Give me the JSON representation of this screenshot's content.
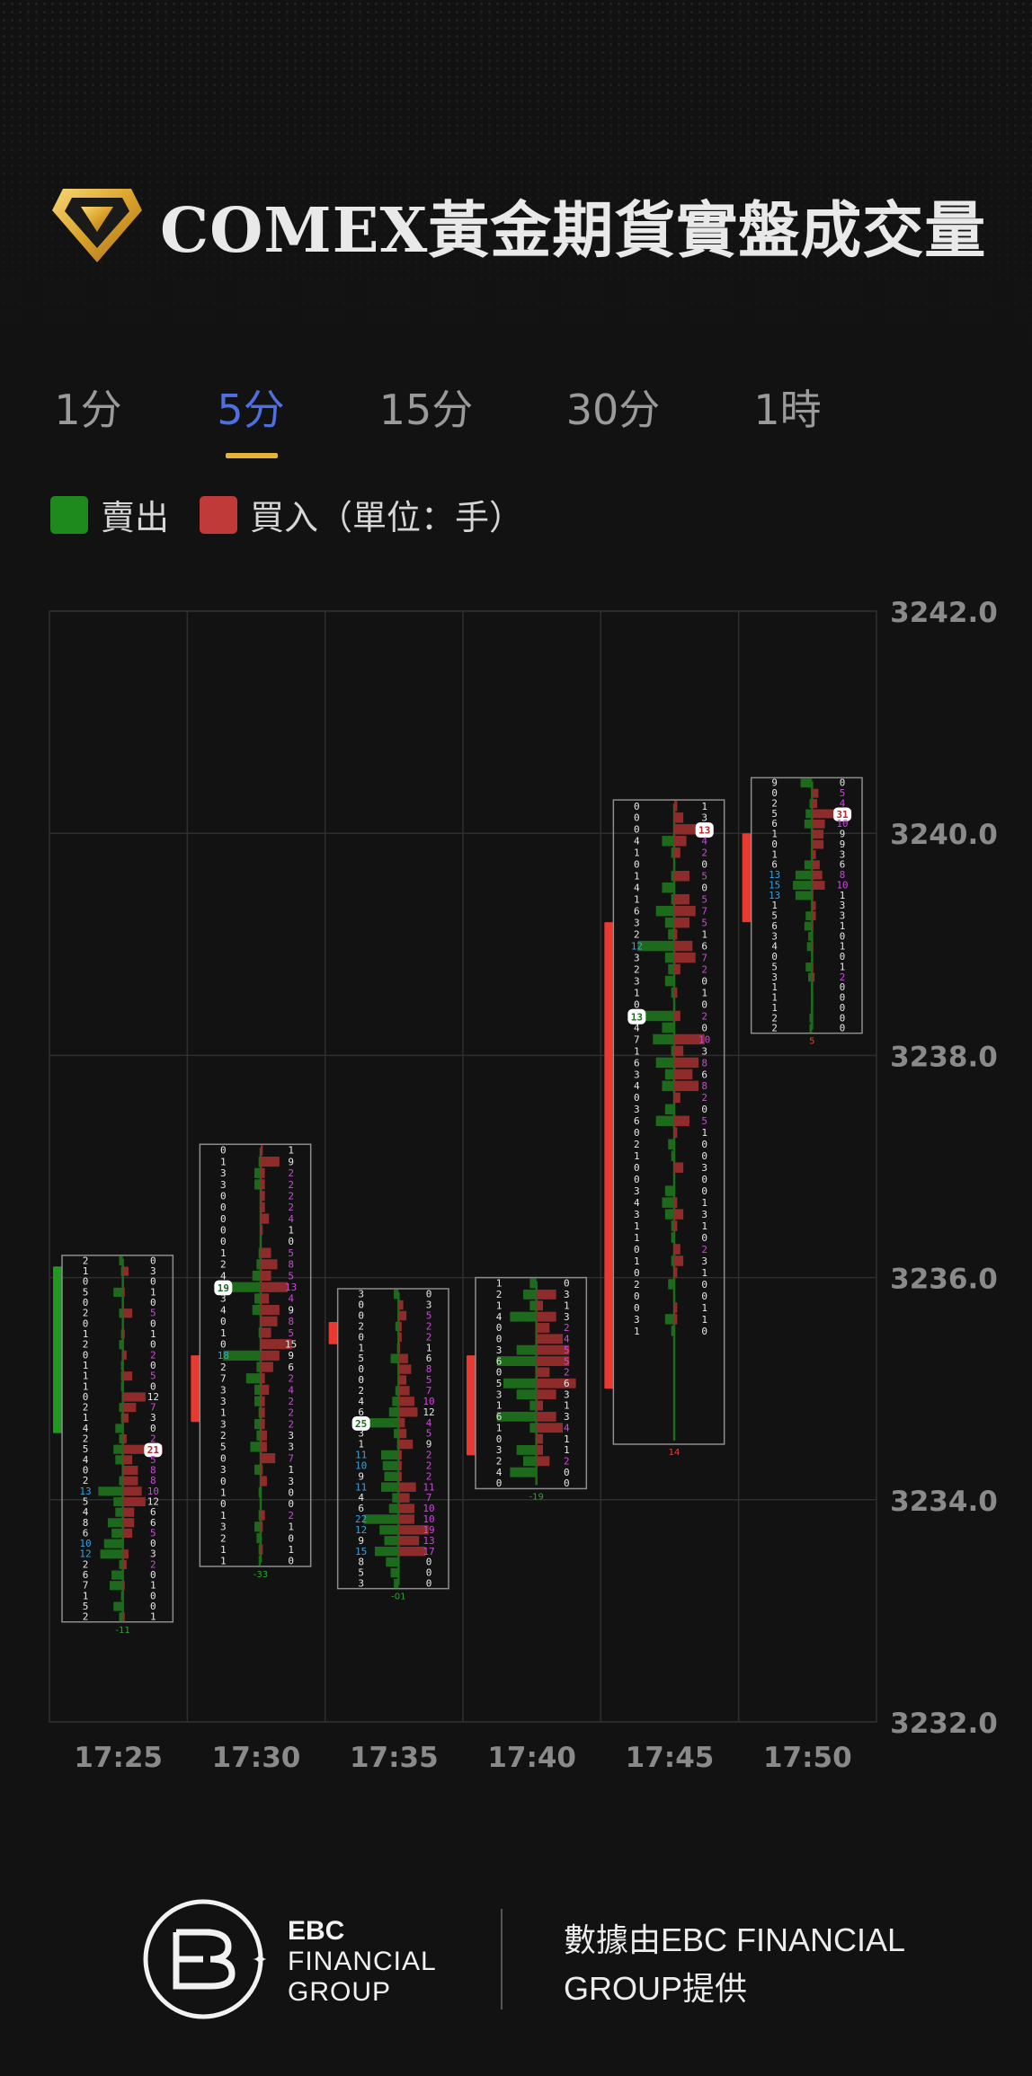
{
  "header": {
    "title": "COMEX黃金期貨實盤成交量",
    "logo_icon": "gold-diamond-icon"
  },
  "tabs": [
    {
      "label": "1分",
      "active": false
    },
    {
      "label": "5分",
      "active": true
    },
    {
      "label": "15分",
      "active": false
    },
    {
      "label": "30分",
      "active": false
    },
    {
      "label": "1時",
      "active": false
    }
  ],
  "legend": {
    "sell_label": "賣出",
    "sell_color": "#1e8a1e",
    "buy_label": "買入（單位：手）",
    "buy_color": "#c03a3a"
  },
  "chart_data": {
    "type": "footprint",
    "xlabel": "",
    "ylabel": "",
    "ylim": [
      3232.0,
      3242.0
    ],
    "y_ticks": [
      "3242.0",
      "3240.0",
      "3238.0",
      "3236.0",
      "3234.0",
      "3232.0"
    ],
    "x_ticks": [
      "17:25",
      "17:30",
      "17:35",
      "17:40",
      "17:45",
      "17:50"
    ],
    "grid": true,
    "tick_size": 0.1,
    "candles": [
      {
        "time": "17:25",
        "direction": "down",
        "open": 3236.1,
        "close": 3234.6,
        "top": 3236.2,
        "bottom": 3232.9,
        "delta": "-11",
        "sell": [
          2,
          1,
          0,
          5,
          0,
          2,
          0,
          1,
          2,
          0,
          1,
          1,
          1,
          0,
          2,
          1,
          4,
          2,
          5,
          4,
          0,
          2,
          13,
          5,
          4,
          8,
          6,
          10,
          12,
          2,
          6,
          7,
          1,
          5,
          2
        ],
        "buy": [
          0,
          3,
          0,
          1,
          0,
          5,
          0,
          1,
          0,
          2,
          0,
          5,
          0,
          12,
          7,
          3,
          0,
          2,
          21,
          5,
          8,
          8,
          10,
          12,
          6,
          6,
          5,
          0,
          3,
          2,
          0,
          1,
          0,
          0,
          1
        ],
        "highlight_buy": [
          18
        ]
      },
      {
        "time": "17:30",
        "direction": "up",
        "open": 3234.7,
        "close": 3235.3,
        "top": 3237.2,
        "bottom": 3233.4,
        "delta": "-33",
        "sell": [
          0,
          1,
          3,
          3,
          0,
          0,
          0,
          0,
          0,
          1,
          2,
          4,
          19,
          3,
          4,
          0,
          1,
          0,
          18,
          2,
          7,
          3,
          3,
          1,
          3,
          2,
          5,
          0,
          3,
          0,
          1,
          0,
          1,
          3,
          2,
          1,
          1
        ],
        "buy": [
          1,
          9,
          2,
          2,
          2,
          2,
          4,
          1,
          0,
          5,
          8,
          5,
          13,
          4,
          9,
          8,
          5,
          15,
          9,
          6,
          2,
          4,
          2,
          2,
          2,
          3,
          3,
          7,
          1,
          3,
          0,
          0,
          2,
          1,
          0,
          1,
          0
        ],
        "highlight_sell": [
          12
        ]
      },
      {
        "time": "17:35",
        "direction": "up",
        "open": 3235.4,
        "close": 3235.6,
        "top": 3235.9,
        "bottom": 3233.2,
        "delta": "-01",
        "sell": [
          3,
          0,
          0,
          2,
          0,
          1,
          5,
          0,
          0,
          2,
          4,
          6,
          25,
          3,
          1,
          11,
          10,
          9,
          11,
          4,
          6,
          22,
          12,
          9,
          15,
          8,
          5,
          3
        ],
        "buy": [
          0,
          3,
          5,
          2,
          2,
          1,
          6,
          8,
          5,
          7,
          10,
          12,
          4,
          5,
          9,
          2,
          2,
          2,
          11,
          7,
          10,
          10,
          19,
          13,
          17,
          0,
          0,
          0
        ],
        "highlight_sell": [
          12
        ]
      },
      {
        "time": "17:40",
        "direction": "up",
        "open": 3234.4,
        "close": 3235.3,
        "top": 3236.0,
        "bottom": 3234.1,
        "delta": "-19",
        "sell": [
          1,
          2,
          1,
          4,
          0,
          0,
          3,
          6,
          0,
          5,
          3,
          1,
          6,
          1,
          0,
          3,
          2,
          4,
          0
        ],
        "buy": [
          0,
          3,
          1,
          3,
          2,
          4,
          5,
          5,
          2,
          6,
          3,
          1,
          3,
          4,
          1,
          1,
          2,
          0,
          0
        ]
      },
      {
        "time": "17:45",
        "direction": "up",
        "open": 3235.0,
        "close": 3239.2,
        "top": 3240.3,
        "bottom": 3234.5,
        "delta": "14",
        "sell": [
          0,
          0,
          0,
          4,
          1,
          0,
          1,
          4,
          1,
          6,
          3,
          2,
          12,
          3,
          2,
          3,
          1,
          0,
          13,
          4,
          7,
          1,
          6,
          3,
          4,
          0,
          3,
          6,
          0,
          2,
          1,
          0,
          0,
          3,
          4,
          3,
          1,
          1,
          0,
          1,
          0,
          2,
          0,
          0,
          3,
          1
        ],
        "buy": [
          1,
          3,
          13,
          4,
          2,
          0,
          5,
          0,
          5,
          7,
          5,
          1,
          6,
          7,
          2,
          0,
          1,
          0,
          2,
          0,
          10,
          3,
          8,
          6,
          8,
          2,
          0,
          5,
          1,
          0,
          0,
          3,
          0,
          0,
          1,
          3,
          1,
          0,
          2,
          3,
          1,
          0,
          0,
          1,
          1,
          0
        ],
        "highlight_buy": [
          2
        ],
        "highlight_sell": [
          18
        ]
      },
      {
        "time": "17:50",
        "direction": "up",
        "open": 3239.2,
        "close": 3240.0,
        "top": 3240.5,
        "bottom": 3238.2,
        "delta": "5",
        "sell": [
          9,
          0,
          2,
          5,
          6,
          1,
          0,
          1,
          6,
          13,
          15,
          13,
          1,
          5,
          6,
          3,
          4,
          0,
          5,
          3,
          1,
          1,
          1,
          2,
          2
        ],
        "buy": [
          0,
          5,
          4,
          31,
          10,
          9,
          9,
          3,
          6,
          8,
          10,
          1,
          3,
          3,
          1,
          0,
          1,
          0,
          1,
          2,
          0,
          0,
          0,
          0,
          0
        ],
        "highlight_buy": [
          3
        ]
      }
    ]
  },
  "footer": {
    "brand_line1": "EBC",
    "brand_line2": "FINANCIAL",
    "brand_line3": "GROUP",
    "provider_text": "數據由EBC FINANCIAL GROUP提供",
    "logo_icon": "ebc-logo-icon"
  }
}
